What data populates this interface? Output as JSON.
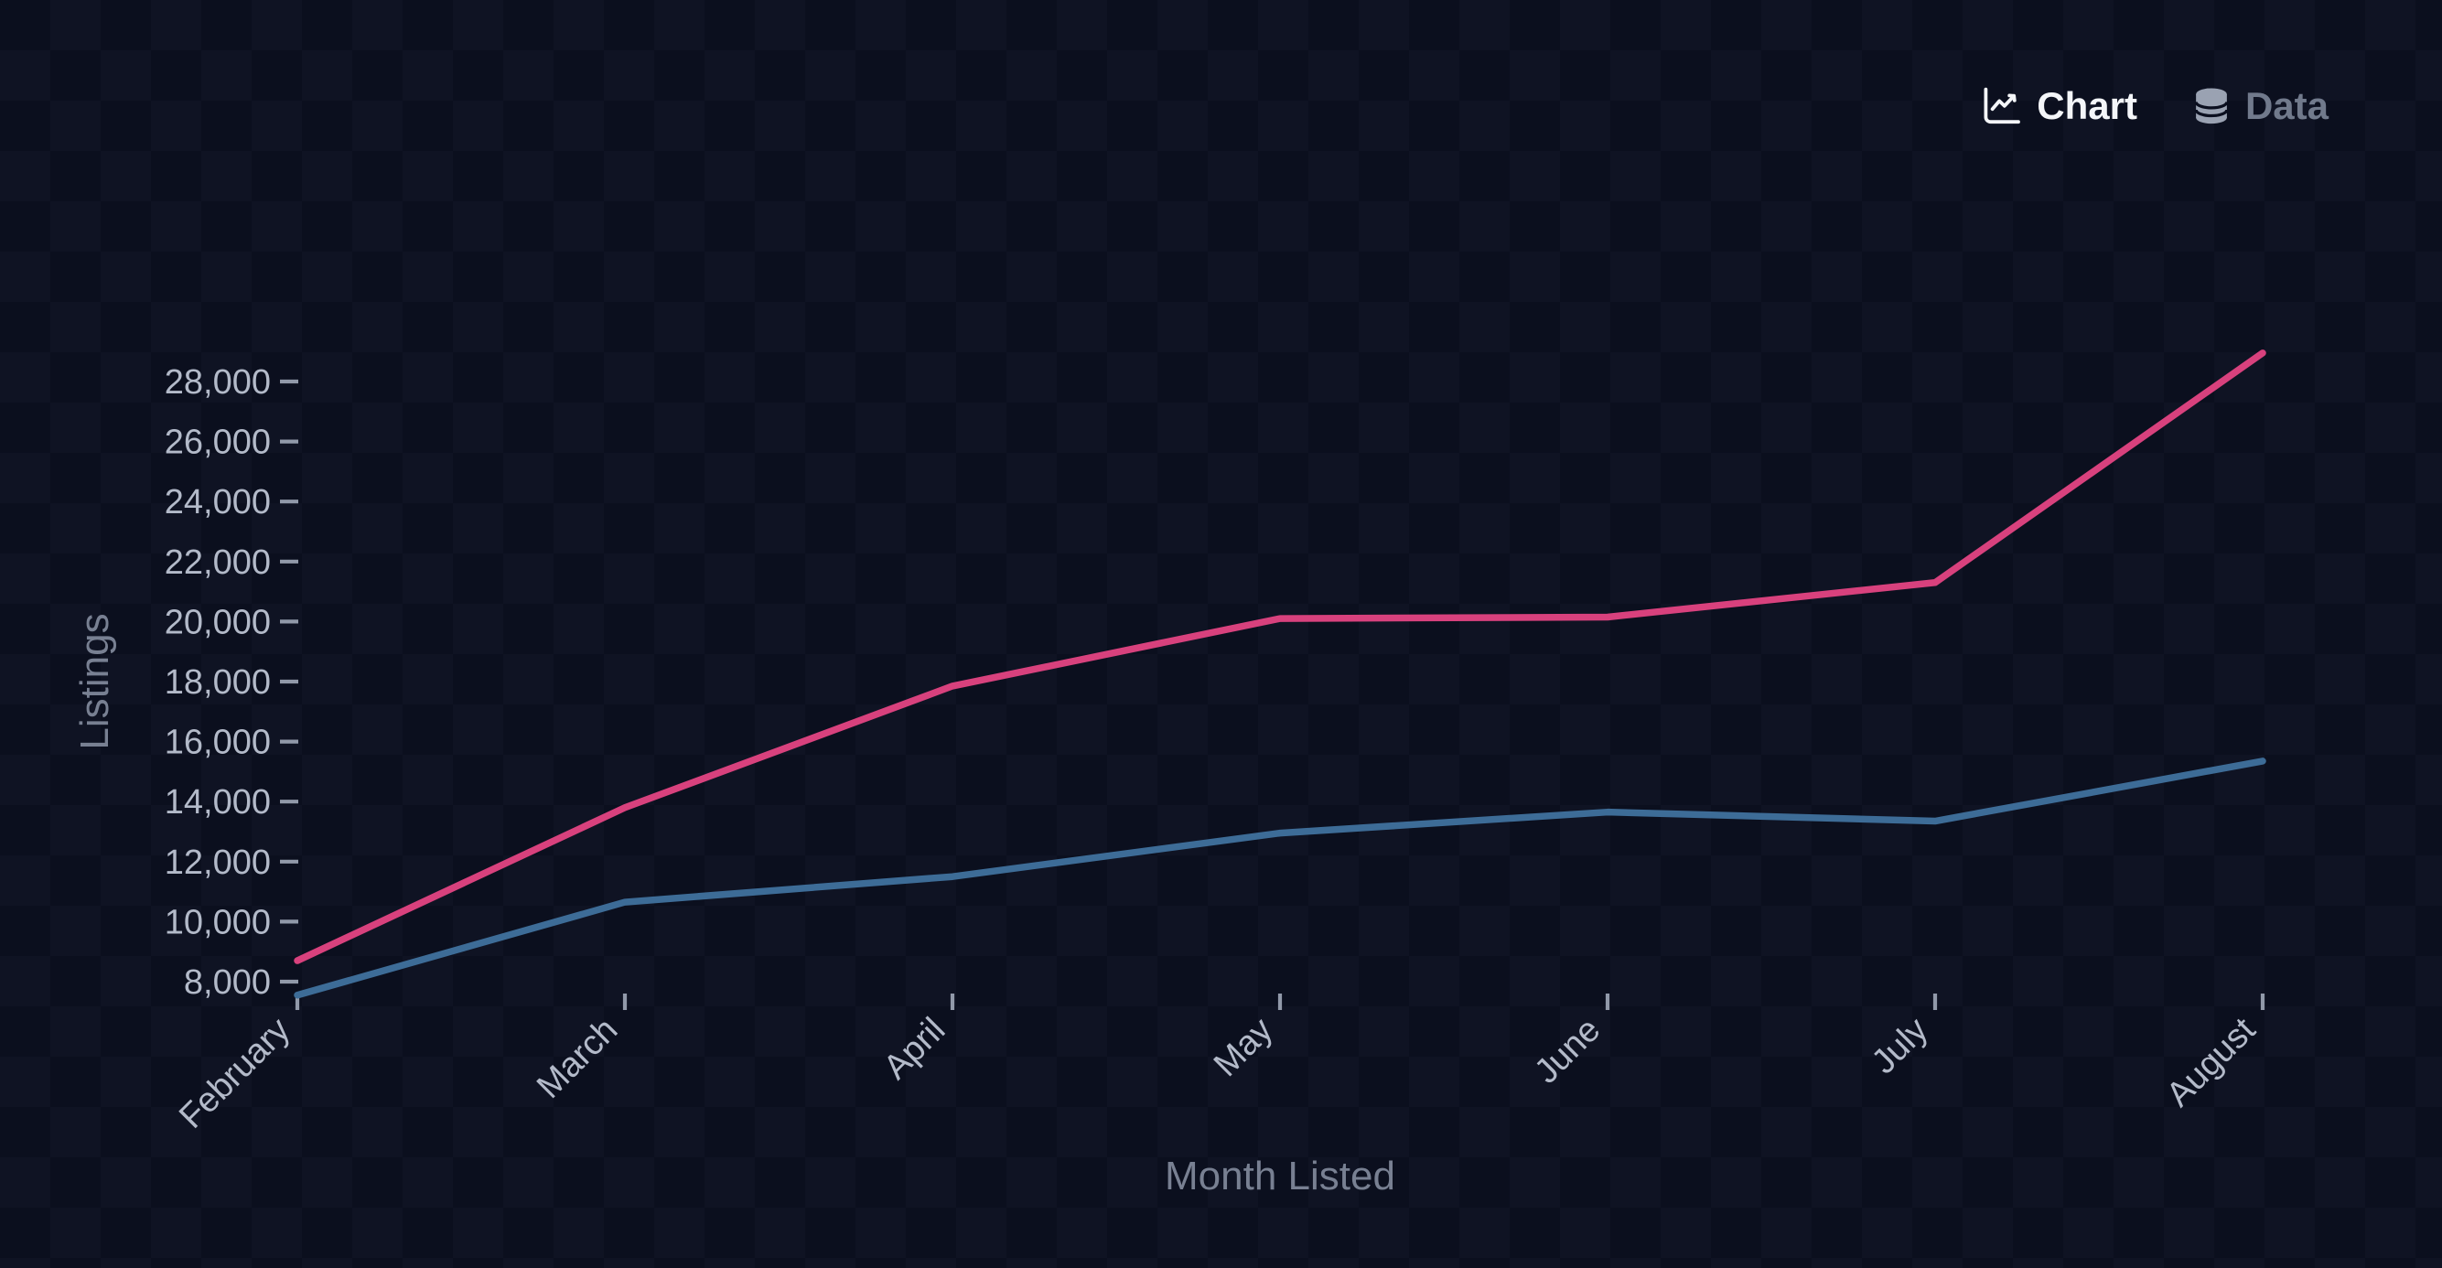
{
  "tabs": [
    {
      "id": "chart",
      "label": "Chart",
      "icon": "line-chart-icon",
      "active": true
    },
    {
      "id": "data",
      "label": "Data",
      "icon": "database-icon",
      "active": false
    }
  ],
  "chart_data": {
    "type": "line",
    "x": [
      "February",
      "March",
      "April",
      "May",
      "June",
      "July",
      "August"
    ],
    "xlabel": "Month Listed",
    "ylabel": "Listings",
    "ylim": [
      8000,
      28000
    ],
    "ytick_step": 2000,
    "yticks": [
      {
        "value": 8000,
        "label": "8,000"
      },
      {
        "value": 10000,
        "label": "10,000"
      },
      {
        "value": 12000,
        "label": "12,000"
      },
      {
        "value": 14000,
        "label": "14,000"
      },
      {
        "value": 16000,
        "label": "16,000"
      },
      {
        "value": 18000,
        "label": "18,000"
      },
      {
        "value": 20000,
        "label": "20,000"
      },
      {
        "value": 22000,
        "label": "22,000"
      },
      {
        "value": 24000,
        "label": "24,000"
      },
      {
        "value": 26000,
        "label": "26,000"
      },
      {
        "value": 28000,
        "label": "28,000"
      }
    ],
    "grid": false,
    "legend": "none",
    "series": [
      {
        "name": "pink-series",
        "color": "#d8417d",
        "values": [
          8700,
          13800,
          17850,
          20100,
          20150,
          21300,
          28950
        ]
      },
      {
        "name": "blue-series",
        "color": "#3d6c97",
        "values": [
          7550,
          10650,
          11500,
          12950,
          13650,
          13350,
          15350
        ]
      }
    ]
  },
  "colors": {
    "background": "#0b0f1f",
    "tick_label": "#b3bac9",
    "axis_title": "#788092",
    "tick_mark": "#9199a9",
    "active_tab": "#f4f6f9",
    "inactive_tab": "#717a8c",
    "inactive_tab_icon": "#9aa2b2"
  }
}
